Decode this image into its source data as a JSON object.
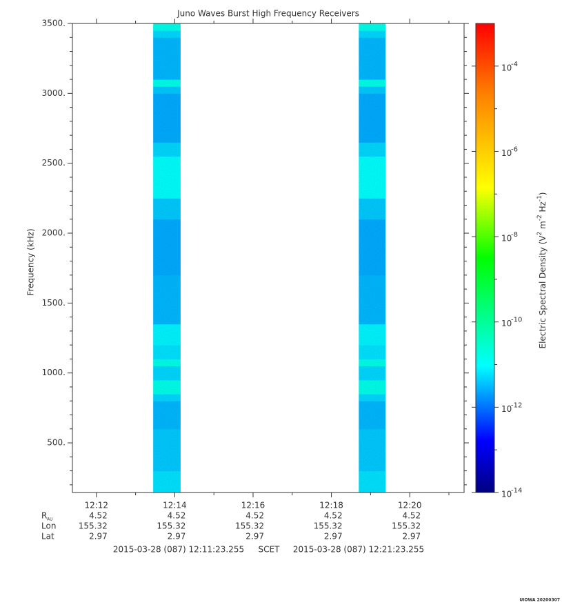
{
  "chart_data": {
    "type": "spectrogram",
    "title": "Juno Waves Burst High Frequency Receivers",
    "ylabel": "Frequency (kHz)",
    "zlabel_parts": [
      "Electric Spectral Density (V",
      "2",
      " m",
      "-2",
      " Hz",
      "-1",
      ")"
    ],
    "xlim": [
      43883.255,
      44483.255
    ],
    "xticks": [
      {
        "value": 43920,
        "label": "12:12"
      },
      {
        "value": 44040,
        "label": "12:14"
      },
      {
        "value": 44160,
        "label": "12:16"
      },
      {
        "value": 44280,
        "label": "12:18"
      },
      {
        "value": 44400,
        "label": "12:20"
      }
    ],
    "minor_xticks": [
      43980,
      44100,
      44220,
      44340,
      44460
    ],
    "ylim": [
      145,
      3500
    ],
    "yticks": [
      {
        "value": 500,
        "label": "500."
      },
      {
        "value": 1000,
        "label": "1000."
      },
      {
        "value": 1500,
        "label": "1500."
      },
      {
        "value": 2000,
        "label": "2000."
      },
      {
        "value": 2500,
        "label": "2500."
      },
      {
        "value": 3000,
        "label": "3000."
      },
      {
        "value": 3500,
        "label": "3500."
      }
    ],
    "minor_yticks": [
      200,
      300,
      400,
      600,
      700,
      800,
      900,
      1100,
      1200,
      1300,
      1400,
      1600,
      1700,
      1800,
      1900,
      2100,
      2200,
      2300,
      2400,
      2600,
      2700,
      2800,
      2900,
      3100,
      3200,
      3300,
      3400
    ],
    "zlim": [
      1e-14,
      0.001
    ],
    "zscale": "log",
    "zticks": [
      {
        "value": 1e-14,
        "base": "10",
        "exponent": "-14"
      },
      {
        "value": 1e-12,
        "base": "10",
        "exponent": "-12"
      },
      {
        "value": 1e-10,
        "base": "10",
        "exponent": "-10"
      },
      {
        "value": 1e-08,
        "base": "10",
        "exponent": "-8"
      },
      {
        "value": 1e-06,
        "base": "10",
        "exponent": "-6"
      },
      {
        "value": 0.0001,
        "base": "10",
        "exponent": "-4"
      }
    ],
    "minor_zticks": [
      1e-13,
      1e-11,
      1e-09,
      1e-07,
      1e-05
    ],
    "colormap": [
      {
        "position": 0,
        "color": "#000080"
      },
      {
        "position": 0.11,
        "color": "#0000ff"
      },
      {
        "position": 0.27,
        "color": "#00ffff"
      },
      {
        "position": 0.5,
        "color": "#00ff00"
      },
      {
        "position": 0.65,
        "color": "#ffff00"
      },
      {
        "position": 0.85,
        "color": "#ff8000"
      },
      {
        "position": 1,
        "color": "#ff0000"
      }
    ],
    "frequency_edges": [
      145,
      300,
      600,
      800,
      850,
      950,
      1050,
      1100,
      1200,
      1350,
      1700,
      2100,
      2250,
      2550,
      2650,
      3000,
      3050,
      3100,
      3400,
      3450,
      3500
    ],
    "bursts": [
      {
        "start": 44007,
        "end": 44049,
        "values": [
          6e-12,
          4e-12,
          3e-12,
          5e-12,
          1.5e-11,
          5e-12,
          1.5e-11,
          6e-12,
          8e-12,
          3e-12,
          2.5e-12,
          4e-12,
          1e-11,
          5e-12,
          2.5e-12,
          4e-12,
          1.5e-11,
          3e-12,
          5e-12,
          1.5e-11
        ]
      },
      {
        "start": 44322,
        "end": 44363,
        "values": [
          6e-12,
          4e-12,
          3e-12,
          5e-12,
          1.5e-11,
          5e-12,
          1.5e-11,
          6e-12,
          8e-12,
          3e-12,
          2.5e-12,
          4e-12,
          1e-11,
          5e-12,
          2.5e-12,
          4e-12,
          1.5e-11,
          3e-12,
          5e-12,
          1.5e-11
        ]
      }
    ],
    "ephemeris": [
      {
        "label": "R",
        "subscript": "AU",
        "values": [
          4.52,
          4.52,
          4.52,
          4.52,
          4.52
        ]
      },
      {
        "label": "Lon",
        "values": [
          155.32,
          155.32,
          155.32,
          155.32,
          155.32
        ]
      },
      {
        "label": "Lat",
        "values": [
          2.97,
          2.97,
          2.97,
          2.97,
          2.97
        ]
      }
    ],
    "time_start": "2015-03-28 (087) 12:11:23.255",
    "time_system": "SCET",
    "time_end": "2015-03-28 (087) 12:21:23.255",
    "credit": "UIOWA 20200307"
  }
}
